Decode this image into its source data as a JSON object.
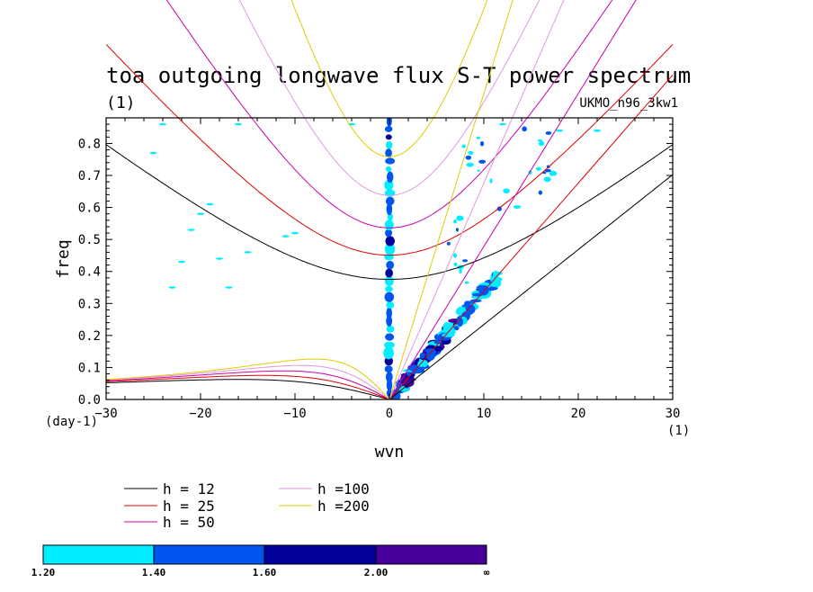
{
  "chart_data": {
    "type": "line",
    "title": "toa outgoing longwave flux S-T power spectrum",
    "subtitle_left": "(1)",
    "subtitle_right": "UKMO_n96_3kw1",
    "xlabel": "wvn",
    "ylabel": "freq",
    "x_unit_label": "(1)",
    "y_unit_label": "(day-1)",
    "xlim": [
      -30,
      30
    ],
    "ylim": [
      0.0,
      0.88
    ],
    "xticks": [
      -30,
      -20,
      -10,
      0,
      10,
      20,
      30
    ],
    "xtick_labels": [
      "−30",
      "−20",
      "−10",
      "0",
      "10",
      "20",
      "30"
    ],
    "yticks": [
      0.0,
      0.1,
      0.2,
      0.3,
      0.4,
      0.5,
      0.6,
      0.7,
      0.8
    ],
    "ytick_labels": [
      "0.0",
      "0.1",
      "0.2",
      "0.3",
      "0.4",
      "0.5",
      "0.6",
      "0.7",
      "0.8"
    ],
    "dispersion_curves": [
      {
        "label": "h = 12",
        "h": 12,
        "color": "#000000"
      },
      {
        "label": "h = 25",
        "h": 25,
        "color": "#dd0000"
      },
      {
        "label": "h = 50",
        "h": 50,
        "color": "#cc00aa"
      },
      {
        "label": "h =100",
        "h": 100,
        "color": "#dd99dd"
      },
      {
        "label": "h =200",
        "h": 200,
        "color": "#ddcc00"
      }
    ],
    "contour_levels": {
      "labels": [
        "1.20",
        "1.40",
        "1.60",
        "2.00",
        "∞"
      ],
      "colors": [
        "#00eeff",
        "#0055ee",
        "#000099",
        "#440099"
      ]
    }
  }
}
